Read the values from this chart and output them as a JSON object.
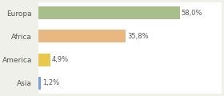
{
  "categories": [
    "Europa",
    "Africa",
    "America",
    "Asia"
  ],
  "values": [
    58.0,
    35.8,
    4.9,
    1.2
  ],
  "labels": [
    "58,0%",
    "35,8%",
    "4,9%",
    "1,2%"
  ],
  "bar_colors": [
    "#a8be8c",
    "#e8b882",
    "#e8c84e",
    "#7b9fd4"
  ],
  "background_color": "#f0f0eb",
  "plot_background": "#ffffff",
  "xlim": [
    0,
    75
  ],
  "figsize": [
    2.8,
    1.2
  ],
  "dpi": 100,
  "bar_height": 0.55,
  "label_fontsize": 6.0,
  "ytick_fontsize": 6.5
}
